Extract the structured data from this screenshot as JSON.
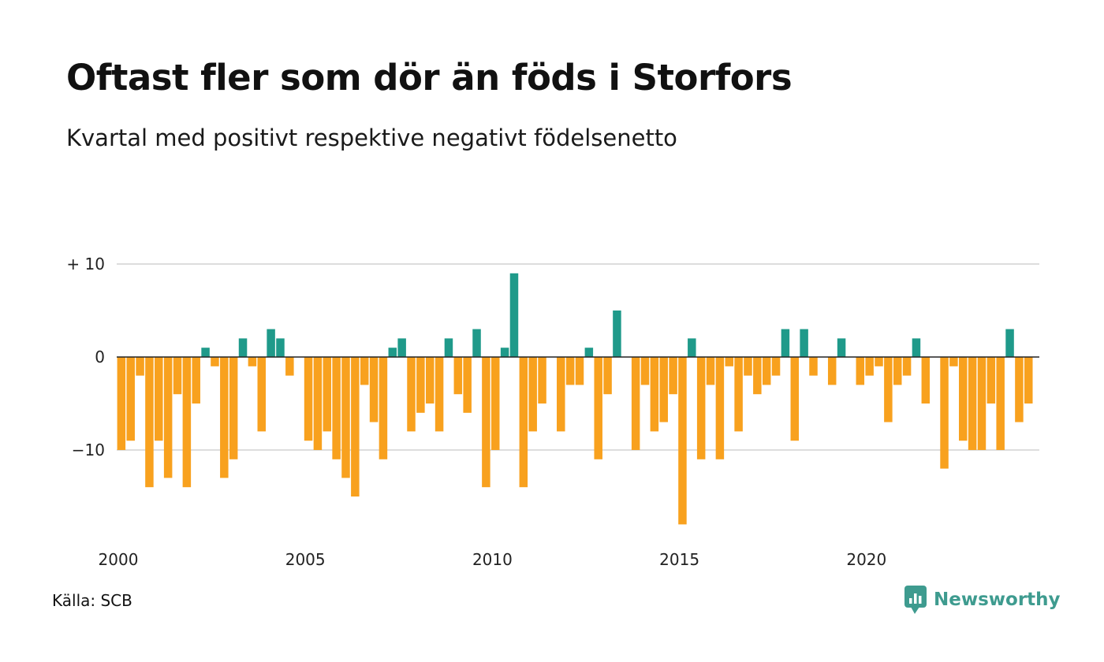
{
  "title": "Oftast fler som dör än föds i Storfors",
  "subtitle": "Kvartal med positivt respektive negativt födelsenetto",
  "source": "Källa: SCB",
  "brand": {
    "name": "Newsworthy",
    "icon": "newsworthy-logo-icon",
    "color": "#3e9b8f"
  },
  "chart_data": {
    "type": "bar",
    "x_start_year": 2000,
    "quarters_per_year": 4,
    "values": [
      -10,
      -9,
      -2,
      -14,
      -9,
      -13,
      -4,
      -14,
      -5,
      1,
      -1,
      -13,
      -11,
      2,
      -1,
      -8,
      3,
      2,
      -2,
      0,
      -9,
      -10,
      -8,
      -11,
      -13,
      -15,
      -3,
      -7,
      -11,
      1,
      2,
      -8,
      -6,
      -5,
      -8,
      2,
      -4,
      -6,
      3,
      -14,
      -10,
      1,
      9,
      -14,
      -8,
      -5,
      0,
      -8,
      -3,
      -3,
      1,
      -11,
      -4,
      5,
      0,
      -10,
      -3,
      -8,
      -7,
      -4,
      -18,
      2,
      -11,
      -3,
      -11,
      -1,
      -8,
      -2,
      -4,
      -3,
      -2,
      3,
      -9,
      3,
      -2,
      0,
      -3,
      2,
      0,
      -3,
      -2,
      -1,
      -7,
      -3,
      -2,
      2,
      -5,
      0,
      -12,
      -1,
      -9,
      -10,
      -10,
      -5,
      -10,
      3,
      -7,
      -5
    ],
    "positive_color": "#1f9a8a",
    "negative_color": "#f8a11e",
    "ylim": [
      -20,
      10
    ],
    "y_ticks": [
      {
        "value": 10,
        "label": "+ 10"
      },
      {
        "value": 0,
        "label": "0"
      },
      {
        "value": -10,
        "label": "−10"
      }
    ],
    "x_ticks": [
      {
        "year": 2000,
        "label": "2000"
      },
      {
        "year": 2005,
        "label": "2005"
      },
      {
        "year": 2010,
        "label": "2010"
      },
      {
        "year": 2015,
        "label": "2015"
      },
      {
        "year": 2020,
        "label": "2020"
      }
    ],
    "grid": true,
    "legend": "none"
  }
}
